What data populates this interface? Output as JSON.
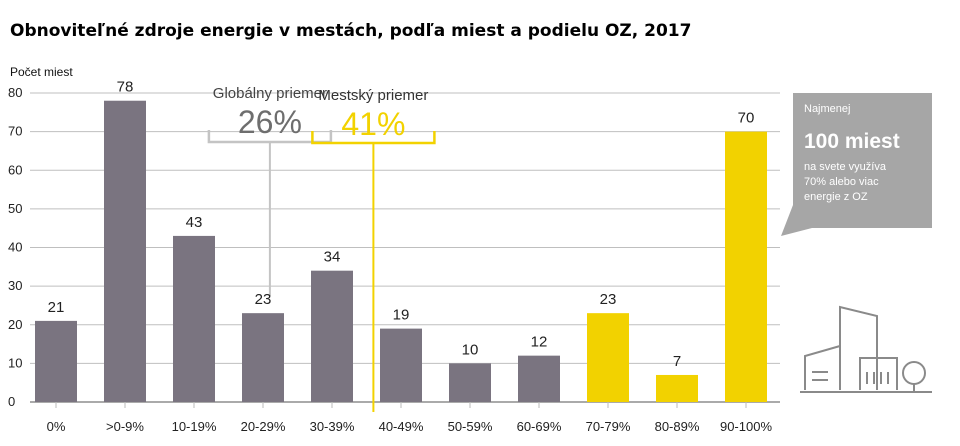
{
  "chart_data": {
    "type": "bar",
    "title": "Obnoviteľné zdroje energie v mestách, podľa miest a podielu OZ, 2017",
    "ylabel": "Počet miest",
    "ylim": [
      0,
      80
    ],
    "yticks": [
      0,
      10,
      20,
      30,
      40,
      50,
      60,
      70,
      80
    ],
    "grid": true,
    "categories": [
      "0%",
      ">0-9%",
      "10-19%",
      "20-29%",
      "30-39%",
      "40-49%",
      "50-59%",
      "60-69%",
      "70-79%",
      "80-89%",
      "90-100%"
    ],
    "values": [
      21,
      78,
      43,
      23,
      34,
      19,
      10,
      12,
      23,
      7,
      70
    ],
    "colors": {
      "gray_bar": "#7a7480",
      "yellow_bar": "#f2d200",
      "grid": "#bfbfbf",
      "global_marker": "#c4c4c4",
      "urban_marker": "#f2d200",
      "callout_bg": "#a6a6a6",
      "building_line": "#8a8a8a"
    },
    "highlight_categories": [
      "70-79%",
      "80-89%",
      "90-100%"
    ],
    "annotations": {
      "global_average": {
        "label": "Globálny priemer",
        "value": "26%",
        "position_value": 26
      },
      "urban_average": {
        "label": "Mestský priemer",
        "value": "41%",
        "position_value": 41
      },
      "callout": {
        "line1": "Najmenej",
        "line2": "100 miest",
        "line3": "na svete využíva",
        "line4": "70% alebo viac",
        "line5": "energie z OZ"
      }
    },
    "decoration_icon": "city-buildings-icon"
  }
}
